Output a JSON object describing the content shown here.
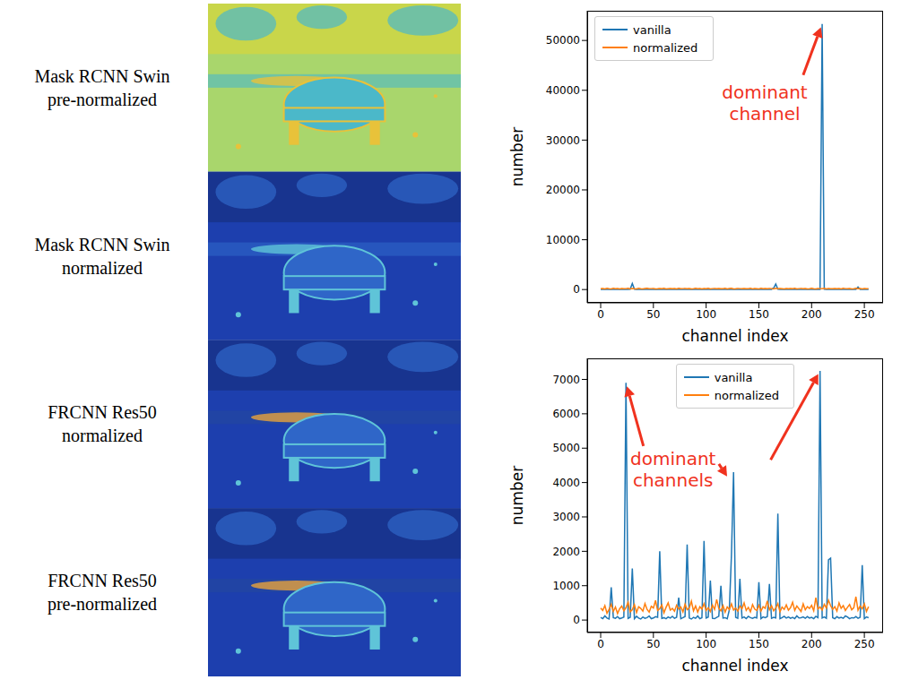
{
  "image_panels": [
    {
      "label": [
        "Mask RCNN Swin",
        "pre-normalized"
      ]
    },
    {
      "label": [
        "Mask RCNN Swin",
        "normalized"
      ]
    },
    {
      "label": [
        "FRCNN Res50",
        "normalized"
      ]
    },
    {
      "label": [
        "FRCNN Res50",
        "pre-normalized"
      ]
    }
  ],
  "chart_data": [
    {
      "type": "line",
      "x_label": "channel index",
      "y_label": "number",
      "annotation": "dominant channel",
      "legend": "upper left",
      "grid": false,
      "xlim": [
        -12.75,
        267.75
      ],
      "xticks": [
        0,
        50,
        100,
        150,
        200,
        250
      ],
      "ylim": [
        -2665,
        55965
      ],
      "yticks": [
        0,
        10000,
        20000,
        30000,
        40000,
        50000
      ],
      "x": [
        0,
        2,
        4,
        6,
        8,
        10,
        12,
        14,
        16,
        18,
        20,
        22,
        24,
        26,
        28,
        30,
        32,
        34,
        36,
        38,
        40,
        42,
        44,
        46,
        48,
        50,
        52,
        54,
        56,
        58,
        60,
        62,
        64,
        66,
        68,
        70,
        72,
        74,
        76,
        78,
        80,
        82,
        84,
        86,
        88,
        90,
        92,
        94,
        96,
        98,
        100,
        102,
        104,
        106,
        108,
        110,
        112,
        114,
        116,
        118,
        120,
        122,
        124,
        126,
        128,
        130,
        132,
        134,
        136,
        138,
        140,
        142,
        144,
        146,
        148,
        150,
        152,
        154,
        156,
        158,
        160,
        162,
        164,
        166,
        168,
        170,
        172,
        174,
        176,
        178,
        180,
        182,
        184,
        186,
        188,
        190,
        192,
        194,
        196,
        198,
        200,
        202,
        204,
        206,
        208,
        210,
        212,
        214,
        216,
        218,
        220,
        222,
        224,
        226,
        228,
        230,
        232,
        234,
        236,
        238,
        240,
        242,
        244,
        246,
        248,
        250,
        252,
        254
      ],
      "series": [
        {
          "name": "vanilla",
          "color": "#1f77b4",
          "values": [
            40,
            25,
            60,
            30,
            55,
            20,
            45,
            70,
            35,
            50,
            30,
            65,
            40,
            25,
            80,
            1200,
            60,
            35,
            45,
            30,
            55,
            40,
            25,
            70,
            35,
            50,
            45,
            30,
            60,
            40,
            25,
            55,
            35,
            45,
            70,
            30,
            40,
            60,
            25,
            50,
            35,
            45,
            65,
            30,
            40,
            55,
            25,
            60,
            35,
            45,
            70,
            30,
            50,
            40,
            25,
            60,
            45,
            35,
            55,
            30,
            40,
            65,
            30,
            50,
            35,
            45,
            60,
            25,
            40,
            55,
            30,
            45,
            70,
            35,
            50,
            40,
            25,
            60,
            45,
            35,
            55,
            40,
            300,
            1100,
            60,
            35,
            45,
            70,
            30,
            50,
            40,
            25,
            60,
            35,
            45,
            55,
            30,
            40,
            65,
            35,
            50,
            40,
            25,
            60,
            45,
            53300,
            80,
            35,
            50,
            40,
            30,
            55,
            45,
            35,
            60,
            25,
            40,
            50,
            35,
            45,
            70,
            30,
            500,
            40,
            55,
            35,
            45,
            30
          ]
        },
        {
          "name": "normalized",
          "color": "#ff7f0e",
          "values": [
            150,
            220,
            130,
            260,
            180,
            120,
            240,
            170,
            200,
            140,
            230,
            160,
            190,
            250,
            130,
            210,
            170,
            140,
            260,
            180,
            120,
            200,
            240,
            150,
            190,
            230,
            140,
            170,
            210,
            160,
            250,
            130,
            180,
            220,
            160,
            200,
            140,
            260,
            170,
            190,
            210,
            150,
            230,
            130,
            180,
            240,
            160,
            200,
            140,
            220,
            170,
            250,
            120,
            190,
            230,
            150,
            210,
            160,
            180,
            240,
            140,
            200,
            260,
            130,
            170,
            220,
            190,
            150,
            230,
            180,
            160,
            240,
            140,
            210,
            180,
            130,
            250,
            170,
            200,
            150,
            220,
            190,
            130,
            240,
            160,
            210,
            180,
            140,
            230,
            170,
            200,
            150,
            260,
            120,
            190,
            230,
            160,
            210,
            140,
            180,
            240,
            170,
            130,
            220,
            190,
            160,
            250,
            140,
            200,
            180,
            150,
            230,
            170,
            210,
            130,
            240,
            190,
            160,
            220,
            140,
            180,
            250,
            160,
            200,
            130,
            210,
            170,
            190
          ]
        }
      ]
    },
    {
      "type": "line",
      "x_label": "channel index",
      "y_label": "number",
      "annotation": "dominant channels",
      "legend": "upper center",
      "grid": false,
      "xlim": [
        -12.75,
        267.75
      ],
      "xticks": [
        0,
        50,
        100,
        150,
        200,
        250
      ],
      "ylim": [
        -362,
        7612
      ],
      "yticks": [
        0,
        1000,
        2000,
        3000,
        4000,
        5000,
        6000,
        7000
      ],
      "x": [
        0,
        2,
        4,
        6,
        8,
        10,
        12,
        14,
        16,
        18,
        20,
        22,
        24,
        26,
        28,
        30,
        32,
        34,
        36,
        38,
        40,
        42,
        44,
        46,
        48,
        50,
        52,
        54,
        56,
        58,
        60,
        62,
        64,
        66,
        68,
        70,
        72,
        74,
        76,
        78,
        80,
        82,
        84,
        86,
        88,
        90,
        92,
        94,
        96,
        98,
        100,
        102,
        104,
        106,
        108,
        110,
        112,
        114,
        116,
        118,
        120,
        122,
        124,
        126,
        128,
        130,
        132,
        134,
        136,
        138,
        140,
        142,
        144,
        146,
        148,
        150,
        152,
        154,
        156,
        158,
        160,
        162,
        164,
        166,
        168,
        170,
        172,
        174,
        176,
        178,
        180,
        182,
        184,
        186,
        188,
        190,
        192,
        194,
        196,
        198,
        200,
        202,
        204,
        206,
        208,
        210,
        212,
        214,
        216,
        218,
        220,
        222,
        224,
        226,
        228,
        230,
        232,
        234,
        236,
        238,
        240,
        242,
        244,
        246,
        248,
        250,
        252,
        254
      ],
      "series": [
        {
          "name": "vanilla",
          "color": "#1f77b4",
          "values": [
            80,
            40,
            120,
            60,
            30,
            950,
            70,
            50,
            100,
            40,
            60,
            90,
            6900,
            50,
            80,
            1500,
            40,
            110,
            60,
            30,
            90,
            50,
            70,
            120,
            40,
            60,
            100,
            80,
            2000,
            50,
            70,
            40,
            90,
            60,
            110,
            50,
            80,
            650,
            40,
            70,
            100,
            2200,
            60,
            30,
            80,
            50,
            120,
            40,
            70,
            2300,
            60,
            90,
            1150,
            50,
            40,
            80,
            110,
            1000,
            60,
            70,
            40,
            300,
            1900,
            4300,
            80,
            50,
            1200,
            60,
            90,
            40,
            110,
            70,
            50,
            80,
            60,
            1100,
            40,
            90,
            70,
            100,
            1050,
            50,
            80,
            60,
            3100,
            40,
            70,
            110,
            60,
            90,
            50,
            80,
            40,
            120,
            60,
            70,
            90,
            50,
            100,
            60,
            80,
            40,
            110,
            70,
            7250,
            60,
            90,
            50,
            1750,
            1800,
            70,
            40,
            100,
            60,
            80,
            50,
            120,
            90,
            40,
            70,
            60,
            100,
            50,
            80,
            1600,
            40,
            90,
            70
          ]
        },
        {
          "name": "normalized",
          "color": "#ff7f0e",
          "values": [
            350,
            280,
            420,
            200,
            310,
            460,
            250,
            380,
            190,
            330,
            410,
            270,
            360,
            520,
            240,
            300,
            450,
            220,
            390,
            340,
            260,
            480,
            310,
            230,
            400,
            350,
            570,
            280,
            330,
            440,
            210,
            370,
            500,
            290,
            340,
            260,
            430,
            320,
            380,
            240,
            460,
            300,
            350,
            550,
            270,
            410,
            230,
            390,
            320,
            480,
            280,
            360,
            250,
            440,
            310,
            600,
            340,
            270,
            420,
            230,
            380,
            310,
            470,
            290,
            350,
            260,
            410,
            330,
            500,
            280,
            370,
            240,
            450,
            320,
            280,
            430,
            260,
            390,
            340,
            560,
            300,
            420,
            270,
            350,
            480,
            240,
            380,
            310,
            440,
            290,
            360,
            520,
            280,
            410,
            330,
            250,
            470,
            300,
            390,
            340,
            430,
            270,
            650,
            320,
            380,
            290,
            460,
            350,
            580,
            420,
            310,
            390,
            260,
            500,
            340,
            420,
            280,
            370,
            450,
            300,
            360,
            680,
            290,
            410,
            330,
            470,
            250,
            390
          ]
        }
      ]
    }
  ]
}
